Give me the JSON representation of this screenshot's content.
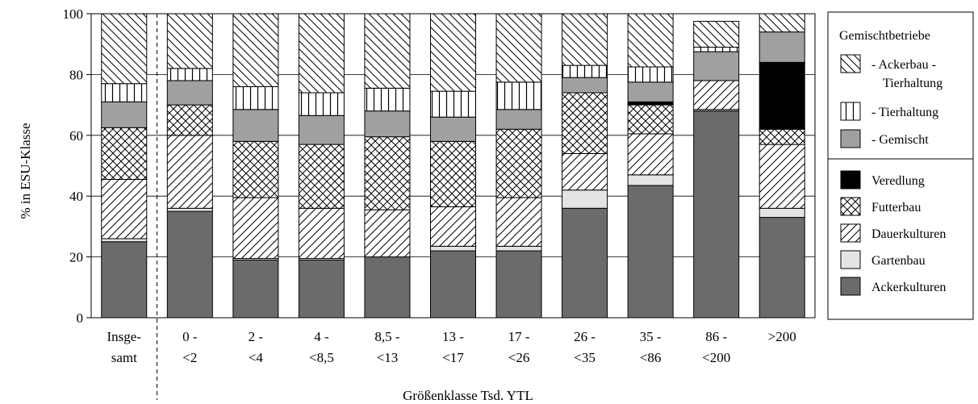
{
  "chart_data": {
    "type": "bar",
    "stacked": true,
    "xlabel": "Größenklasse Tsd. YTL",
    "ylabel": "% in ESU-Klasse",
    "ylim": [
      0,
      100
    ],
    "yticks": [
      0,
      20,
      40,
      60,
      80,
      100
    ],
    "grid": true,
    "legend_position": "right",
    "categories": [
      {
        "line1": "Insge-",
        "line2": "samt"
      },
      {
        "line1": "0 -",
        "line2": "<2"
      },
      {
        "line1": "2 -",
        "line2": "<4"
      },
      {
        "line1": "4 -",
        "line2": "<8,5"
      },
      {
        "line1": "8,5 -",
        "line2": "<13"
      },
      {
        "line1": "13 -",
        "line2": "<17"
      },
      {
        "line1": "17 -",
        "line2": "<26"
      },
      {
        "line1": "26 -",
        "line2": "<35"
      },
      {
        "line1": "35 -",
        "line2": "<86"
      },
      {
        "line1": "86 -",
        "line2": "<200"
      },
      {
        "line1": ">200",
        "line2": ""
      }
    ],
    "series": [
      {
        "name": "Ackerkulturen",
        "pattern": "solid-dark",
        "color": "#6b6b6b",
        "values": [
          25,
          35,
          19,
          19,
          20,
          22,
          22,
          36,
          43.5,
          68,
          33
        ]
      },
      {
        "name": "Gartenbau",
        "pattern": "solid-light",
        "color": "#e4e4e4",
        "values": [
          1,
          1,
          0.5,
          0.5,
          0,
          1.5,
          1.5,
          6,
          3.5,
          0.5,
          3
        ]
      },
      {
        "name": "Dauerkulturen",
        "pattern": "diagonal",
        "color": "#ffffff",
        "values": [
          19.5,
          24,
          20,
          16.5,
          15.5,
          13,
          16,
          12,
          13.5,
          9.5,
          21
        ]
      },
      {
        "name": "Futterbau",
        "pattern": "crosshatch",
        "color": "#ffffff",
        "values": [
          17,
          10,
          18.5,
          21,
          24,
          21.5,
          22.5,
          20,
          9.5,
          0,
          5
        ]
      },
      {
        "name": "Veredlung",
        "pattern": "solid-black",
        "color": "#000000",
        "values": [
          0,
          0,
          0,
          0,
          0,
          0,
          0,
          0,
          1,
          0,
          22
        ]
      },
      {
        "name": "- Gemischt",
        "pattern": "solid-mid",
        "color": "#a0a0a0",
        "values": [
          8.5,
          8,
          10.5,
          9.5,
          8.5,
          8,
          6.5,
          5,
          6.5,
          9.5,
          10
        ]
      },
      {
        "name": "- Tierhaltung",
        "pattern": "vertical",
        "color": "#ffffff",
        "values": [
          6,
          4,
          7.5,
          7.5,
          7.5,
          8.5,
          9,
          4,
          5,
          1.5,
          0
        ]
      },
      {
        "name": "- Ackerbau - Tierhaltung",
        "pattern": "back-diagonal",
        "color": "#ffffff",
        "values": [
          23,
          18,
          24,
          26,
          24.5,
          25.5,
          22.5,
          17,
          17.5,
          8.5,
          6
        ]
      }
    ],
    "legend": {
      "group_title": "Gemischtbetriebe",
      "group_items": [
        {
          "pattern": "back-diagonal",
          "line1": "- Ackerbau -",
          "line2": "Tierhaltung"
        },
        {
          "pattern": "vertical",
          "line1": "- Tierhaltung",
          "line2": ""
        },
        {
          "pattern": "solid-mid",
          "line1": "- Gemischt",
          "line2": ""
        }
      ],
      "items": [
        {
          "pattern": "solid-black",
          "label": "Veredlung"
        },
        {
          "pattern": "crosshatch",
          "label": "Futterbau"
        },
        {
          "pattern": "diagonal",
          "label": "Dauerkulturen"
        },
        {
          "pattern": "solid-light",
          "label": "Gartenbau"
        },
        {
          "pattern": "solid-dark",
          "label": "Ackerkulturen"
        }
      ]
    }
  }
}
